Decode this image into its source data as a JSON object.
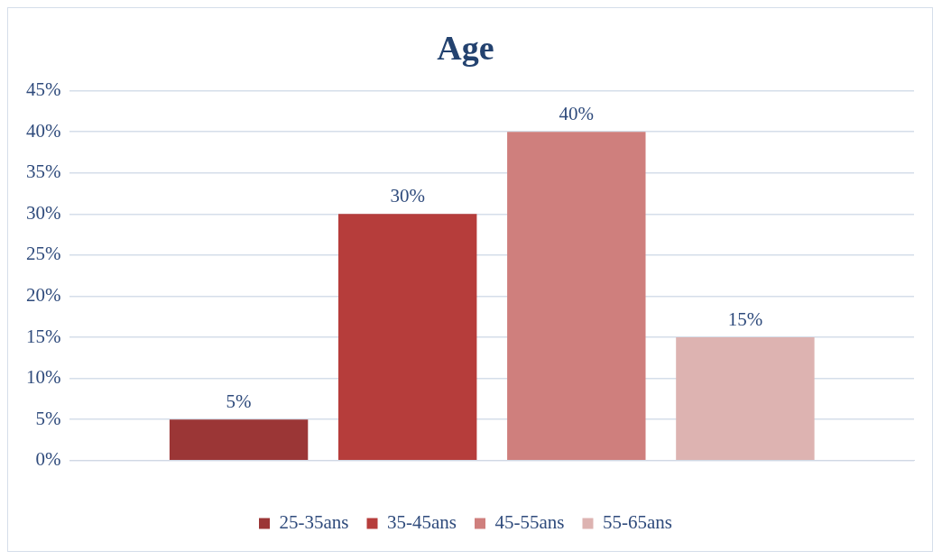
{
  "chart_data": {
    "type": "bar",
    "title": "Age",
    "categories": [
      null
    ],
    "series": [
      {
        "name": "25-35ans",
        "color": "#9b3636",
        "values": [
          5
        ],
        "value_labels": [
          "5%"
        ]
      },
      {
        "name": "35-45ans",
        "color": "#b63d3b",
        "values": [
          30
        ],
        "value_labels": [
          "30%"
        ]
      },
      {
        "name": "45-55ans",
        "color": "#cf7f7d",
        "values": [
          40
        ],
        "value_labels": [
          "40%"
        ]
      },
      {
        "name": "55-65ans",
        "color": "#ddb3b1",
        "values": [
          15
        ],
        "value_labels": [
          "15%"
        ]
      }
    ],
    "ylim": [
      0,
      45
    ],
    "yticks": [
      {
        "value": 0,
        "label": "0%"
      },
      {
        "value": 5,
        "label": "5%"
      },
      {
        "value": 10,
        "label": "10%"
      },
      {
        "value": 15,
        "label": "15%"
      },
      {
        "value": 20,
        "label": "20%"
      },
      {
        "value": 25,
        "label": "25%"
      },
      {
        "value": 30,
        "label": "30%"
      },
      {
        "value": 35,
        "label": "35%"
      },
      {
        "value": 40,
        "label": "40%"
      },
      {
        "value": 45,
        "label": "45%"
      }
    ],
    "grid": "y",
    "legend": "bottom"
  }
}
